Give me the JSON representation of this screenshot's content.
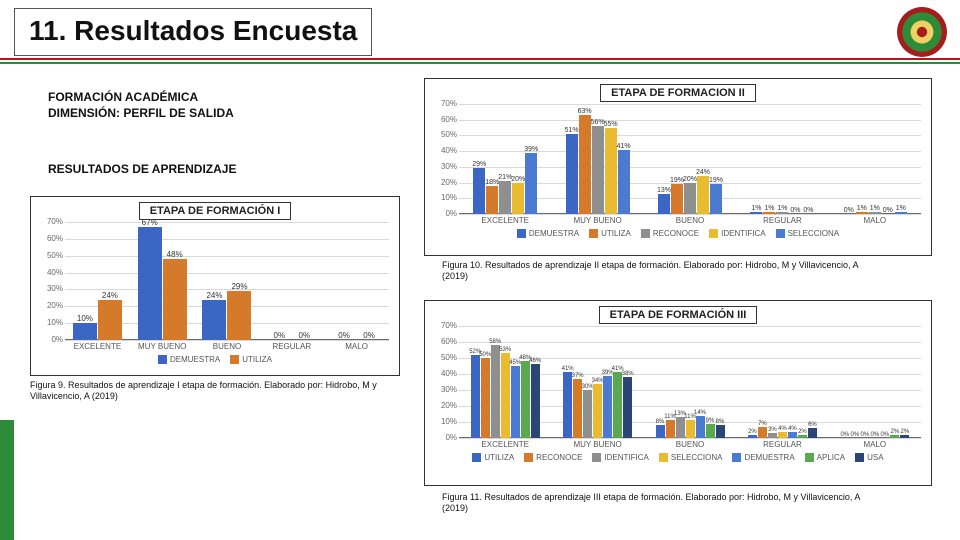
{
  "title": "11. Resultados Encuesta",
  "subtitle1": "FORMACIÓN ACADÉMICA",
  "subtitle2": "DIMENSIÓN: PERFIL DE SALIDA",
  "subtitle3": "RESULTADOS DE APRENDIZAJE",
  "logo": {
    "outer": "#a51d1d",
    "inner": "#2e8b3a",
    "center": "#f0d060"
  },
  "chart1": {
    "title": "ETAPA DE FORMACIÓN I",
    "type": "bar",
    "ylim": [
      0,
      70
    ],
    "ytick_step": 10,
    "categories": [
      "EXCELENTE",
      "MUY BUENO",
      "BUENO",
      "REGULAR",
      "MALO"
    ],
    "series": [
      {
        "name": "DEMUESTRA",
        "color": "#3c66c4",
        "values": [
          10,
          67,
          24,
          0,
          0
        ]
      },
      {
        "name": "UTILIZA",
        "color": "#d47a2a",
        "values": [
          24,
          48,
          29,
          0,
          0
        ]
      }
    ],
    "grid_color": "#d9d9d9",
    "background": "#ffffff",
    "label_fontsize": 8
  },
  "chart2": {
    "title": "ETAPA DE FORMACION II",
    "type": "bar",
    "ylim": [
      0,
      70
    ],
    "ytick_step": 10,
    "categories": [
      "EXCELENTE",
      "MUY BUENO",
      "BUENO",
      "REGULAR",
      "MALO"
    ],
    "series": [
      {
        "name": "DEMUESTRA",
        "color": "#3c66c4",
        "values": [
          29,
          51,
          13,
          1,
          0
        ]
      },
      {
        "name": "UTILIZA",
        "color": "#d47a2a",
        "values": [
          18,
          63,
          19,
          1,
          1
        ]
      },
      {
        "name": "RECONOCE",
        "color": "#8f8f8f",
        "values": [
          21,
          56,
          20,
          1,
          1
        ]
      },
      {
        "name": "IDENTIFICA",
        "color": "#e8bb30",
        "values": [
          20,
          55,
          24,
          0,
          0
        ]
      },
      {
        "name": "SELECCIONA",
        "color": "#4a7bd0",
        "values": [
          39,
          41,
          19,
          0,
          1
        ]
      }
    ],
    "grid_color": "#d9d9d9",
    "background": "#ffffff",
    "label_fontsize": 8
  },
  "chart3": {
    "title": "ETAPA DE FORMACIÓN III",
    "type": "bar",
    "ylim": [
      0,
      70
    ],
    "ytick_step": 10,
    "categories": [
      "EXCELENTE",
      "MUY BUENO",
      "BUENO",
      "REGULAR",
      "MALO"
    ],
    "series": [
      {
        "name": "UTILIZA",
        "color": "#3c66c4",
        "values": [
          52,
          41,
          8,
          2,
          0
        ]
      },
      {
        "name": "RECONOCE",
        "color": "#d47a2a",
        "values": [
          50,
          37,
          11,
          7,
          0
        ]
      },
      {
        "name": "IDENTIFICA",
        "color": "#8f8f8f",
        "values": [
          58,
          30,
          13,
          3,
          0
        ]
      },
      {
        "name": "SELECCIONA",
        "color": "#e8bb30",
        "values": [
          53,
          34,
          11,
          4,
          0
        ]
      },
      {
        "name": "DEMUESTRA",
        "color": "#4a7bd0",
        "values": [
          45,
          39,
          14,
          4,
          0
        ]
      },
      {
        "name": "APLICA",
        "color": "#5aa84f",
        "values": [
          48,
          41,
          9,
          2,
          2
        ]
      },
      {
        "name": "USA",
        "color": "#2b4577",
        "values": [
          46,
          38,
          8,
          6,
          2
        ]
      }
    ],
    "grid_color": "#d9d9d9",
    "background": "#ffffff",
    "label_fontsize": 8
  },
  "caption1": "Figura 9. Resultados de aprendizaje I etapa de formación. Elaborado por: Hidrobo, M y Villavicencio, A (2019)",
  "caption2": "Figura 10.  Resultados de aprendizaje II etapa de formación. Elaborado por: Hidrobo, M y Villavicencio, A (2019)",
  "caption3": "Figura 11. Resultados de aprendizaje III etapa de formación. Elaborado por: Hidrobo, M y Villavicencio, A (2019)"
}
